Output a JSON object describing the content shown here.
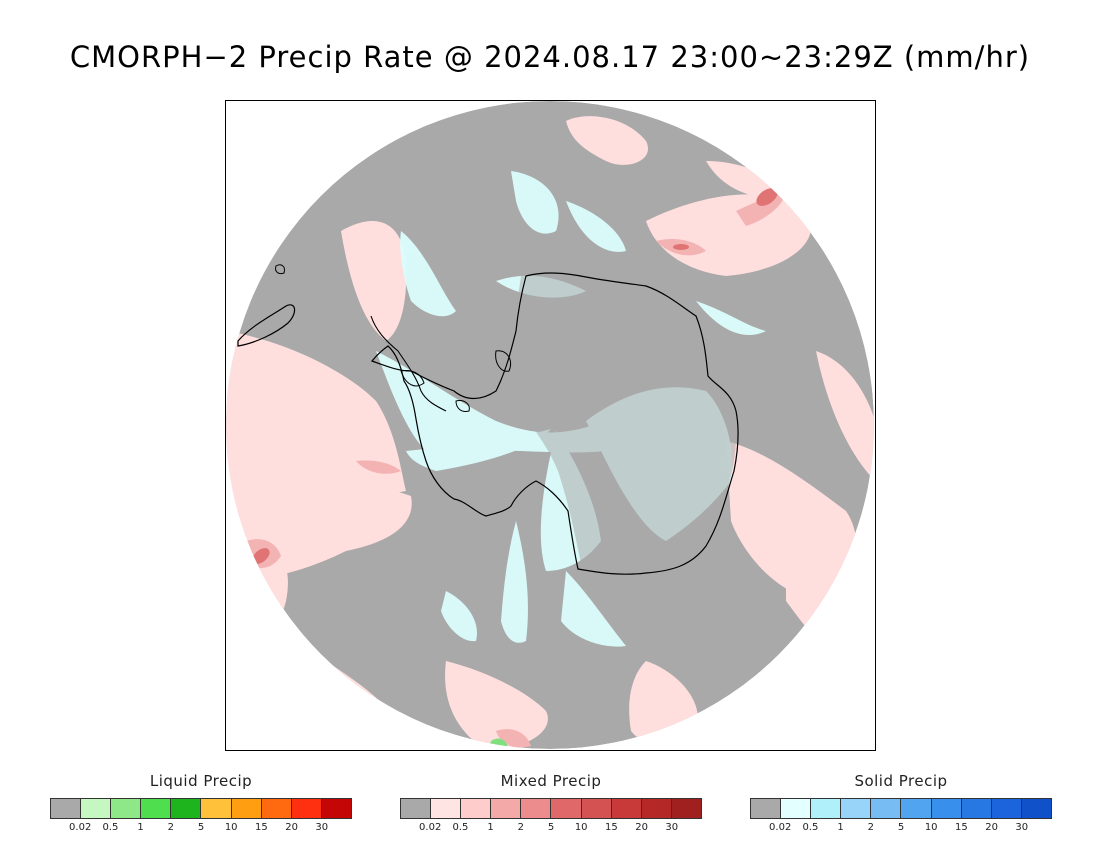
{
  "title": "CMORPH−2 Precip Rate @ 2024.08.17 23:00~23:29Z (mm/hr)",
  "map": {
    "projection": "south-polar-stereographic",
    "region": "Antarctica",
    "background_color": "#a9a9a9",
    "light_pink": "#ffdede",
    "medium_pink": "#f3b3b3",
    "dark_pink": "#e07373",
    "light_cyan": "#dcfdfd",
    "green": "#7fe07f",
    "coast_color": "#000000"
  },
  "legends": [
    {
      "id": "liquid",
      "title": "Liquid Precip",
      "colors": [
        "#a9a9a9",
        "#c7f7c0",
        "#8ee888",
        "#4ede4e",
        "#1eb41e",
        "#ffc13a",
        "#ff9e10",
        "#ff6a10",
        "#ff3010",
        "#c40606"
      ],
      "labels": [
        "0.02",
        "0.5",
        "1",
        "2",
        "5",
        "10",
        "15",
        "20",
        "30"
      ]
    },
    {
      "id": "mixed",
      "title": "Mixed Precip",
      "colors": [
        "#a9a9a9",
        "#ffe4e4",
        "#ffcccc",
        "#f4a9a9",
        "#ec8c8c",
        "#e06868",
        "#d45252",
        "#c83a3a",
        "#b42828",
        "#a02020"
      ],
      "labels": [
        "0.02",
        "0.5",
        "1",
        "2",
        "5",
        "10",
        "15",
        "20",
        "30"
      ]
    },
    {
      "id": "solid",
      "title": "Solid Precip",
      "colors": [
        "#a9a9a9",
        "#e4ffff",
        "#b0f0fa",
        "#98d4fa",
        "#78bcf4",
        "#50a4f0",
        "#3890ec",
        "#2878e4",
        "#1c64dc",
        "#1050c8"
      ],
      "labels": [
        "0.02",
        "0.5",
        "1",
        "2",
        "5",
        "10",
        "15",
        "20",
        "30"
      ]
    }
  ]
}
